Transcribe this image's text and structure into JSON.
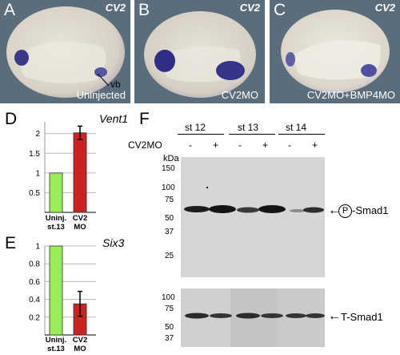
{
  "panels": {
    "A": {
      "letter": "A",
      "marker": "CV2",
      "condition": "Uninjected",
      "annotation": "vb"
    },
    "B": {
      "letter": "B",
      "marker": "CV2",
      "condition": "CV2MO"
    },
    "C": {
      "letter": "C",
      "marker": "CV2",
      "condition": "CV2MO+BMP4MO"
    }
  },
  "chart_data": [
    {
      "type": "bar",
      "panel": "D",
      "gene": "Vent1",
      "categories": [
        [
          "Uninj.",
          "st.13"
        ],
        [
          "CV2",
          "MO"
        ]
      ],
      "values": [
        1.0,
        2.02
      ],
      "errors": [
        0,
        0.17
      ],
      "colors": [
        "#99ee55",
        "#cc2222"
      ],
      "ylim": [
        0,
        2.3
      ],
      "yticks": [
        0.5,
        1,
        1.5,
        2
      ],
      "ytick_labels": [
        "0.5",
        "1",
        "1.5",
        "2"
      ]
    },
    {
      "type": "bar",
      "panel": "E",
      "gene": "Six3",
      "categories": [
        [
          "Uninj.",
          "st.13"
        ],
        [
          "CV2",
          "MO"
        ]
      ],
      "values": [
        1.0,
        0.35
      ],
      "errors": [
        0,
        0.14
      ],
      "colors": [
        "#99ee55",
        "#cc2222"
      ],
      "ylim": [
        0,
        1.0
      ],
      "yticks": [
        0.2,
        0.4,
        0.6,
        0.8,
        1
      ],
      "ytick_labels": [
        "0.2",
        "0.4",
        "0.6",
        "0.8",
        "1"
      ]
    }
  ],
  "blot": {
    "letter": "F",
    "stages": [
      "st 12",
      "st 13",
      "st 14"
    ],
    "treatment_label": "CV2MO",
    "lane_signs": [
      "-",
      "+",
      "-",
      "+",
      "-",
      "+"
    ],
    "kda_label": "kDa",
    "top_markers": [
      "150",
      "100",
      "75",
      "50",
      "37",
      "25"
    ],
    "top_band_label": "-Smad1",
    "phospho_symbol": "P",
    "bottom_markers": [
      "100",
      "75",
      "50",
      "37"
    ],
    "bottom_band_label": "T-Smad1",
    "arrow": "←"
  }
}
